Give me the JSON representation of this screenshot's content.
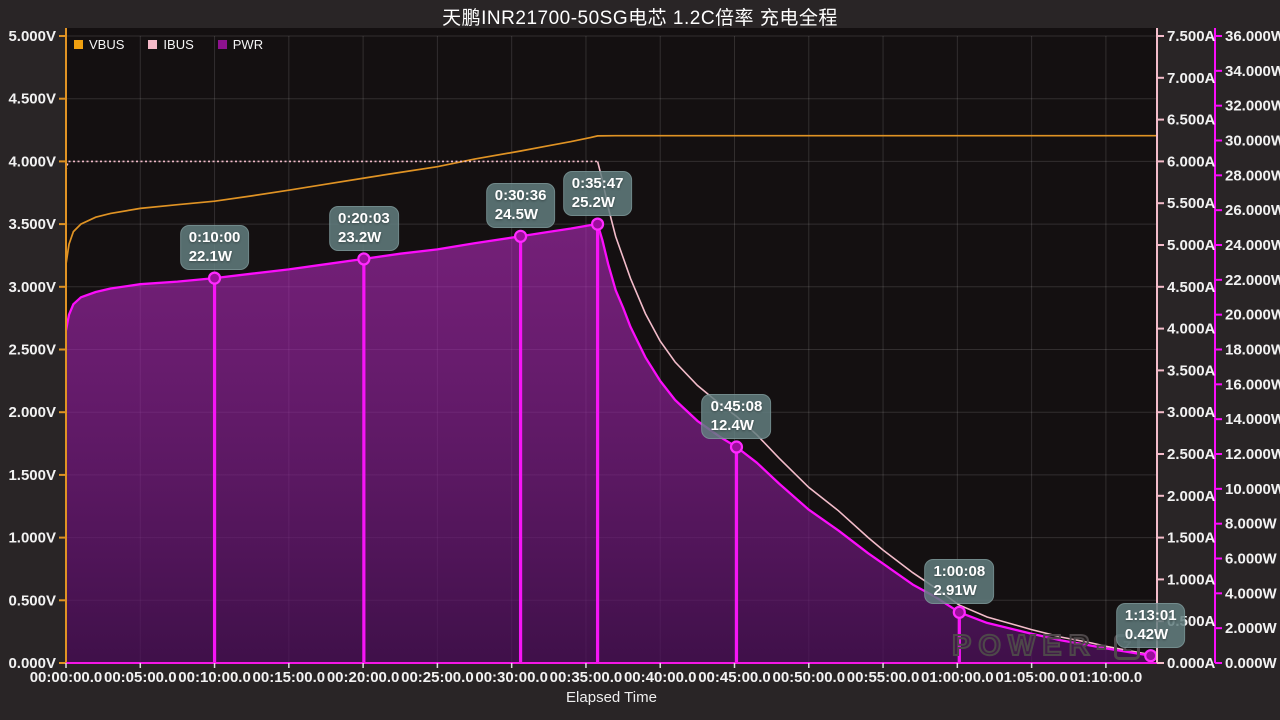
{
  "title": "天鹏INR21700-50SG电芯 1.2C倍率 充电全程",
  "xlabel": "Elapsed Time",
  "legend": [
    {
      "label": "VBUS",
      "color": "#f0a010"
    },
    {
      "label": "IBUS",
      "color": "#f5b9c8"
    },
    {
      "label": "PWR",
      "color": "#8e128e"
    }
  ],
  "watermark": {
    "text": "POWER-",
    "logo": "Z"
  },
  "colors": {
    "background": "#292526",
    "plot_background": "#141011",
    "grid": "rgba(255,255,255,0.13)",
    "vbus": "#e09324",
    "ibus": "#f3bcca",
    "pwr": "#fb0dfb",
    "x_axis_line": "#f516e6",
    "tick_text": "#f2f2f2",
    "annotation_bg": "rgba(97,126,127,0.85)"
  },
  "chart_data": {
    "type": "line",
    "title": "天鹏INR21700-50SG电芯 1.2C倍率 充电全程",
    "x_axis": {
      "label": "Elapsed Time",
      "tick_labels": [
        "00:00:00.0",
        "00:05:00.0",
        "00:10:00.0",
        "00:15:00.0",
        "00:20:00.0",
        "00:25:00.0",
        "00:30:00.0",
        "00:35:00.0",
        "00:40:00.0",
        "00:45:00.0",
        "00:50:00.0",
        "00:55:00.0",
        "01:00:00.0",
        "01:05:00.0",
        "01:10:00.0"
      ],
      "tick_step_min": 5,
      "max_minutes": 73.44
    },
    "y_axes": [
      {
        "id": "voltage",
        "side": "left",
        "min": 0,
        "max": 5,
        "color": "#e09324",
        "tick_labels": [
          "5.000V",
          "4.500V",
          "4.000V",
          "3.500V",
          "3.000V",
          "2.500V",
          "2.000V",
          "1.500V",
          "1.000V",
          "0.500V",
          "0.000V"
        ]
      },
      {
        "id": "current",
        "side": "right1",
        "min": 0,
        "max": 7.5,
        "color": "#f3bcca",
        "tick_labels": [
          "7.500A",
          "7.000A",
          "6.500A",
          "6.000A",
          "5.500A",
          "5.000A",
          "4.500A",
          "4.000A",
          "3.500A",
          "3.000A",
          "2.500A",
          "2.000A",
          "1.500A",
          "1.000A",
          "0.500A",
          "0.000A"
        ]
      },
      {
        "id": "power",
        "side": "right2",
        "min": 0,
        "max": 36,
        "color": "#fb0dfb",
        "tick_labels": [
          "36.000W",
          "34.000W",
          "32.000W",
          "30.000W",
          "28.000W",
          "26.000W",
          "24.000W",
          "22.000W",
          "20.000W",
          "18.000W",
          "16.000W",
          "14.000W",
          "12.000W",
          "10.000W",
          "8.000W",
          "6.000W",
          "4.000W",
          "2.000W",
          "0.000W"
        ]
      }
    ],
    "series": [
      {
        "name": "VBUS",
        "axis": "voltage",
        "color": "#e09324",
        "width": 1.7,
        "points": [
          [
            0,
            3.18
          ],
          [
            0.2,
            3.34
          ],
          [
            0.5,
            3.44
          ],
          [
            1,
            3.5
          ],
          [
            2,
            3.555
          ],
          [
            3,
            3.585
          ],
          [
            5,
            3.625
          ],
          [
            7.5,
            3.655
          ],
          [
            10,
            3.683
          ],
          [
            12.5,
            3.725
          ],
          [
            15,
            3.77
          ],
          [
            17.5,
            3.818
          ],
          [
            20.05,
            3.867
          ],
          [
            22.5,
            3.912
          ],
          [
            25,
            3.958
          ],
          [
            27.5,
            4.018
          ],
          [
            30.6,
            4.083
          ],
          [
            32.5,
            4.125
          ],
          [
            34,
            4.158
          ],
          [
            35.3,
            4.19
          ],
          [
            35.783,
            4.203
          ],
          [
            37,
            4.205
          ],
          [
            40,
            4.205
          ],
          [
            45,
            4.205
          ],
          [
            50,
            4.205
          ],
          [
            55,
            4.205
          ],
          [
            60,
            4.205
          ],
          [
            65,
            4.205
          ],
          [
            70,
            4.205
          ],
          [
            73.44,
            4.205
          ]
        ]
      },
      {
        "name": "IBUS",
        "axis": "current",
        "color": "#f3bcca",
        "width": 1.6,
        "dash_until_min": 35.783,
        "points": [
          [
            0,
            5.9
          ],
          [
            0.15,
            6.0
          ],
          [
            5,
            6.0
          ],
          [
            10,
            6.0
          ],
          [
            15,
            6.0
          ],
          [
            20,
            6.0
          ],
          [
            25,
            6.0
          ],
          [
            30,
            6.0
          ],
          [
            33,
            6.0
          ],
          [
            35.783,
            6.0
          ],
          [
            36.1,
            5.78
          ],
          [
            36.5,
            5.45
          ],
          [
            37,
            5.1
          ],
          [
            37.5,
            4.85
          ],
          [
            38,
            4.6
          ],
          [
            39,
            4.18
          ],
          [
            40,
            3.85
          ],
          [
            41,
            3.6
          ],
          [
            42.5,
            3.32
          ],
          [
            44,
            3.1
          ],
          [
            45.133,
            2.95
          ],
          [
            46.5,
            2.73
          ],
          [
            48,
            2.45
          ],
          [
            50,
            2.1
          ],
          [
            52,
            1.82
          ],
          [
            54,
            1.5
          ],
          [
            55,
            1.35
          ],
          [
            57,
            1.08
          ],
          [
            58.5,
            0.9
          ],
          [
            60.133,
            0.693
          ],
          [
            62,
            0.55
          ],
          [
            64,
            0.45
          ],
          [
            65,
            0.4
          ],
          [
            67,
            0.31
          ],
          [
            69,
            0.24
          ],
          [
            70,
            0.2
          ],
          [
            71.5,
            0.15
          ],
          [
            73.017,
            0.1
          ]
        ]
      },
      {
        "name": "PWR",
        "axis": "power",
        "color": "#fb0dfb",
        "width": 2.3,
        "fill": true,
        "points": [
          [
            0,
            19.1
          ],
          [
            0.2,
            20.0
          ],
          [
            0.5,
            20.6
          ],
          [
            1,
            21.0
          ],
          [
            2,
            21.3
          ],
          [
            3,
            21.5
          ],
          [
            5,
            21.75
          ],
          [
            7.5,
            21.9
          ],
          [
            10,
            22.1
          ],
          [
            12.5,
            22.35
          ],
          [
            15,
            22.6
          ],
          [
            17.5,
            22.9
          ],
          [
            20.05,
            23.2
          ],
          [
            22.5,
            23.5
          ],
          [
            25,
            23.75
          ],
          [
            27.5,
            24.1
          ],
          [
            30.6,
            24.5
          ],
          [
            32.5,
            24.75
          ],
          [
            34,
            24.95
          ],
          [
            35.3,
            25.14
          ],
          [
            35.783,
            25.2
          ],
          [
            36.1,
            24.3
          ],
          [
            36.5,
            22.9
          ],
          [
            37,
            21.4
          ],
          [
            37.5,
            20.4
          ],
          [
            38,
            19.3
          ],
          [
            39,
            17.55
          ],
          [
            40,
            16.2
          ],
          [
            41,
            15.1
          ],
          [
            42.5,
            13.9
          ],
          [
            44,
            13.0
          ],
          [
            45.133,
            12.4
          ],
          [
            46.5,
            11.5
          ],
          [
            48,
            10.3
          ],
          [
            50,
            8.8
          ],
          [
            52,
            7.6
          ],
          [
            54,
            6.3
          ],
          [
            55,
            5.7
          ],
          [
            57,
            4.5
          ],
          [
            58.5,
            3.8
          ],
          [
            60.133,
            2.91
          ],
          [
            62,
            2.3
          ],
          [
            64,
            1.89
          ],
          [
            65,
            1.68
          ],
          [
            67,
            1.3
          ],
          [
            69,
            1.0
          ],
          [
            70,
            0.84
          ],
          [
            71.5,
            0.63
          ],
          [
            73.017,
            0.42
          ]
        ]
      }
    ],
    "annotations": [
      {
        "time": "0:10:00",
        "power": "22.1W",
        "t_min": 10.0,
        "watts": 22.1
      },
      {
        "time": "0:20:03",
        "power": "23.2W",
        "t_min": 20.05,
        "watts": 23.2
      },
      {
        "time": "0:30:36",
        "power": "24.5W",
        "t_min": 30.6,
        "watts": 24.5
      },
      {
        "time": "0:35:47",
        "power": "25.2W",
        "t_min": 35.783,
        "watts": 25.2
      },
      {
        "time": "0:45:08",
        "power": "12.4W",
        "t_min": 45.133,
        "watts": 12.4
      },
      {
        "time": "1:00:08",
        "power": "2.91W",
        "t_min": 60.133,
        "watts": 2.91
      },
      {
        "time": "1:13:01",
        "power": "0.42W",
        "t_min": 73.017,
        "watts": 0.42
      }
    ],
    "grid": true,
    "legend_position": "top-left"
  }
}
